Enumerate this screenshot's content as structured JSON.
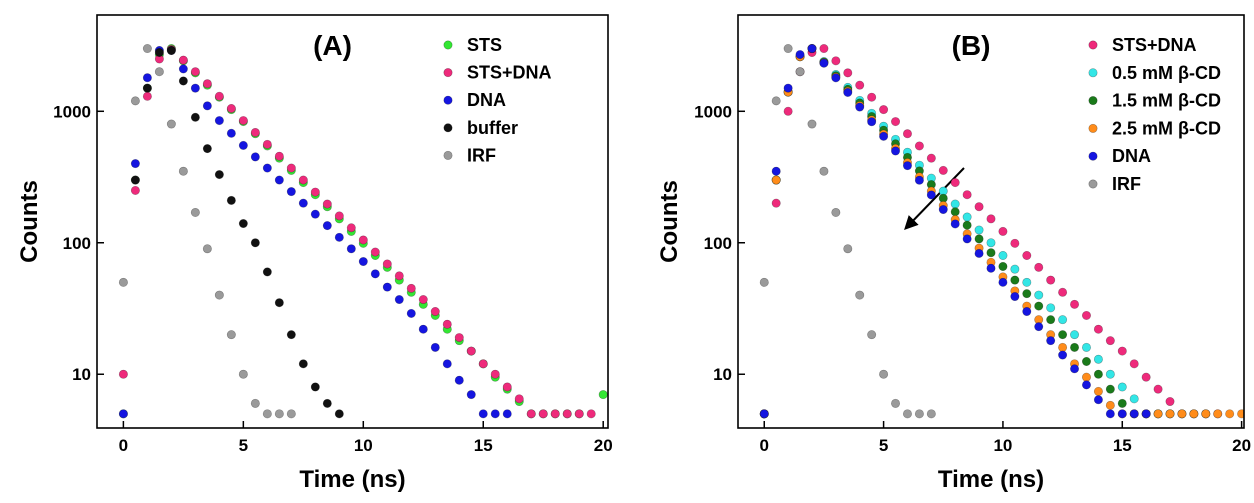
{
  "chart_data": [
    {
      "type": "scatter",
      "title": "(A)",
      "xlabel": "Time (ns)",
      "ylabel": "Counts",
      "yscale": "log",
      "legend": "upper right",
      "xlim": [
        -1.1,
        20.2
      ],
      "ylim": [
        3.9,
        5400
      ],
      "xticks": [
        0,
        5,
        10,
        15,
        20
      ],
      "yticks": [
        10,
        100,
        1000
      ],
      "x": [
        0,
        0.5,
        1,
        1.5,
        2,
        2.5,
        3,
        3.5,
        4,
        4.5,
        5,
        5.5,
        6,
        6.5,
        7,
        7.5,
        8,
        8.5,
        9,
        9.5,
        10,
        10.5,
        11,
        11.5,
        12,
        12.5,
        13,
        13.5,
        14,
        14.5,
        15,
        15.5,
        16,
        16.5,
        17,
        17.5,
        18,
        18.5,
        19,
        19.5,
        20
      ],
      "series": [
        {
          "name": "STS",
          "color": "#33e633",
          "values": [
            5,
            300,
            1500,
            2700,
            3000,
            2420,
            1960,
            1580,
            1280,
            1030,
            835,
            675,
            545,
            440,
            355,
            287,
            232,
            188,
            152,
            122,
            99,
            80,
            65,
            52,
            42,
            34,
            28,
            22,
            18,
            15,
            12,
            9.5,
            7.7,
            6.2,
            5,
            5,
            5,
            5,
            5,
            null,
            7
          ]
        },
        {
          "name": "STS+DNA",
          "color": "#ee2a7b",
          "values": [
            10,
            250,
            1300,
            2500,
            2950,
            2450,
            2000,
            1620,
            1300,
            1050,
            850,
            690,
            560,
            455,
            370,
            300,
            243,
            197,
            160,
            130,
            105,
            85,
            69,
            56,
            45,
            37,
            30,
            24,
            19,
            15,
            12,
            10,
            8,
            6.5,
            5,
            5,
            5,
            5,
            5,
            5,
            null
          ]
        },
        {
          "name": "DNA",
          "color": "#1515e0",
          "values": [
            5,
            400,
            1800,
            2900,
            2900,
            2100,
            1500,
            1100,
            850,
            680,
            550,
            450,
            370,
            300,
            245,
            200,
            165,
            135,
            110,
            90,
            72,
            58,
            46,
            37,
            29,
            22,
            16,
            12,
            9,
            7,
            5,
            5,
            5,
            null,
            null,
            null,
            null,
            null,
            null,
            null,
            null
          ]
        },
        {
          "name": "buffer",
          "color": "#111111",
          "values": [
            null,
            300,
            1500,
            2800,
            2900,
            1700,
            900,
            520,
            330,
            210,
            140,
            100,
            60,
            35,
            20,
            12,
            8,
            6,
            5,
            null,
            null,
            null,
            null,
            null,
            null,
            null,
            null,
            null,
            null,
            null,
            null,
            null,
            null,
            null,
            null,
            null,
            null,
            null,
            null,
            null,
            null
          ]
        },
        {
          "name": "IRF",
          "color": "#9a9a9a",
          "values": [
            50,
            1200,
            3000,
            2000,
            800,
            350,
            170,
            90,
            40,
            20,
            10,
            6,
            5,
            5,
            5,
            null,
            null,
            null,
            null,
            null,
            null,
            null,
            null,
            null,
            null,
            null,
            null,
            null,
            null,
            null,
            null,
            null,
            null,
            null,
            null,
            null,
            null,
            null,
            null,
            null,
            null
          ]
        }
      ]
    },
    {
      "type": "scatter",
      "title": "(B)",
      "xlabel": "Time (ns)",
      "ylabel": "Counts",
      "yscale": "log",
      "legend": "upper right",
      "xlim": [
        -1.1,
        20.1
      ],
      "ylim": [
        3.9,
        5400
      ],
      "xticks": [
        0,
        5,
        10,
        15,
        20
      ],
      "yticks": [
        10,
        100,
        1000
      ],
      "x": [
        0,
        0.5,
        1,
        1.5,
        2,
        2.5,
        3,
        3.5,
        4,
        4.5,
        5,
        5.5,
        6,
        6.5,
        7,
        7.5,
        8,
        8.5,
        9,
        9.5,
        10,
        10.5,
        11,
        11.5,
        12,
        12.5,
        13,
        13.5,
        14,
        14.5,
        15,
        15.5,
        16,
        16.5,
        17,
        17.5,
        18,
        18.5,
        19,
        19.5,
        20
      ],
      "series": [
        {
          "name": "STS+DNA",
          "color": "#ee2a7b",
          "values": [
            5,
            200,
            1000,
            2000,
            2800,
            3000,
            2420,
            1960,
            1580,
            1280,
            1030,
            835,
            675,
            545,
            440,
            355,
            287,
            232,
            188,
            152,
            122,
            99,
            80,
            65,
            52,
            42,
            34,
            28,
            22,
            18,
            15,
            12,
            9.5,
            7.7,
            6.2,
            5,
            5,
            5,
            5,
            null,
            null
          ]
        },
        {
          "name": "0.5 mM β-CD",
          "color": "#33e6e6",
          "values": [
            5,
            300,
            1400,
            2600,
            3000,
            2390,
            1905,
            1520,
            1210,
            965,
            770,
            612,
            488,
            389,
            310,
            247,
            197,
            157,
            125,
            100,
            80,
            63,
            50,
            40,
            32,
            26,
            20,
            16,
            13,
            10,
            8,
            6.5,
            5,
            5,
            5,
            null,
            null,
            null,
            null,
            null,
            null
          ]
        },
        {
          "name": "1.5 mM β-CD",
          "color": "#1a7a1a",
          "values": [
            5,
            300,
            1400,
            2600,
            3000,
            2364,
            1863,
            1468,
            1157,
            912,
            718,
            566,
            446,
            352,
            277,
            218,
            172,
            136,
            107,
            84,
            66,
            52,
            41,
            33,
            26,
            20,
            16,
            12.5,
            10,
            7.7,
            6,
            5,
            5,
            5,
            5,
            5,
            5,
            5,
            null,
            null,
            null
          ]
        },
        {
          "name": "2.5 mM β-CD",
          "color": "#ff8c1a",
          "values": [
            5,
            300,
            1400,
            2600,
            3000,
            2337,
            1820,
            1418,
            1104,
            860,
            670,
            522,
            407,
            317,
            247,
            192,
            150,
            117,
            91,
            71,
            55,
            43,
            33,
            26,
            20,
            16,
            12,
            9.5,
            7.4,
            5.8,
            5,
            5,
            5,
            5,
            5,
            5,
            5,
            5,
            5,
            5,
            5
          ]
        },
        {
          "name": "DNA",
          "color": "#1515e0",
          "values": [
            5,
            350,
            1500,
            2700,
            3000,
            2322,
            1797,
            1391,
            1077,
            833,
            645,
            499,
            386,
            299,
            231,
            179,
            139,
            107,
            83,
            64,
            50,
            39,
            30,
            23,
            18,
            14,
            11,
            8.3,
            6.4,
            5,
            5,
            5,
            5,
            null,
            null,
            null,
            null,
            null,
            null,
            null,
            null
          ]
        },
        {
          "name": "IRF",
          "color": "#9a9a9a",
          "values": [
            50,
            1200,
            3000,
            2000,
            800,
            350,
            170,
            90,
            40,
            20,
            10,
            6,
            5,
            5,
            5,
            null,
            null,
            null,
            null,
            null,
            null,
            null,
            null,
            null,
            null,
            null,
            null,
            null,
            null,
            null,
            null,
            null,
            null,
            null,
            null,
            null,
            null,
            null,
            null,
            null,
            null
          ]
        }
      ]
    }
  ]
}
